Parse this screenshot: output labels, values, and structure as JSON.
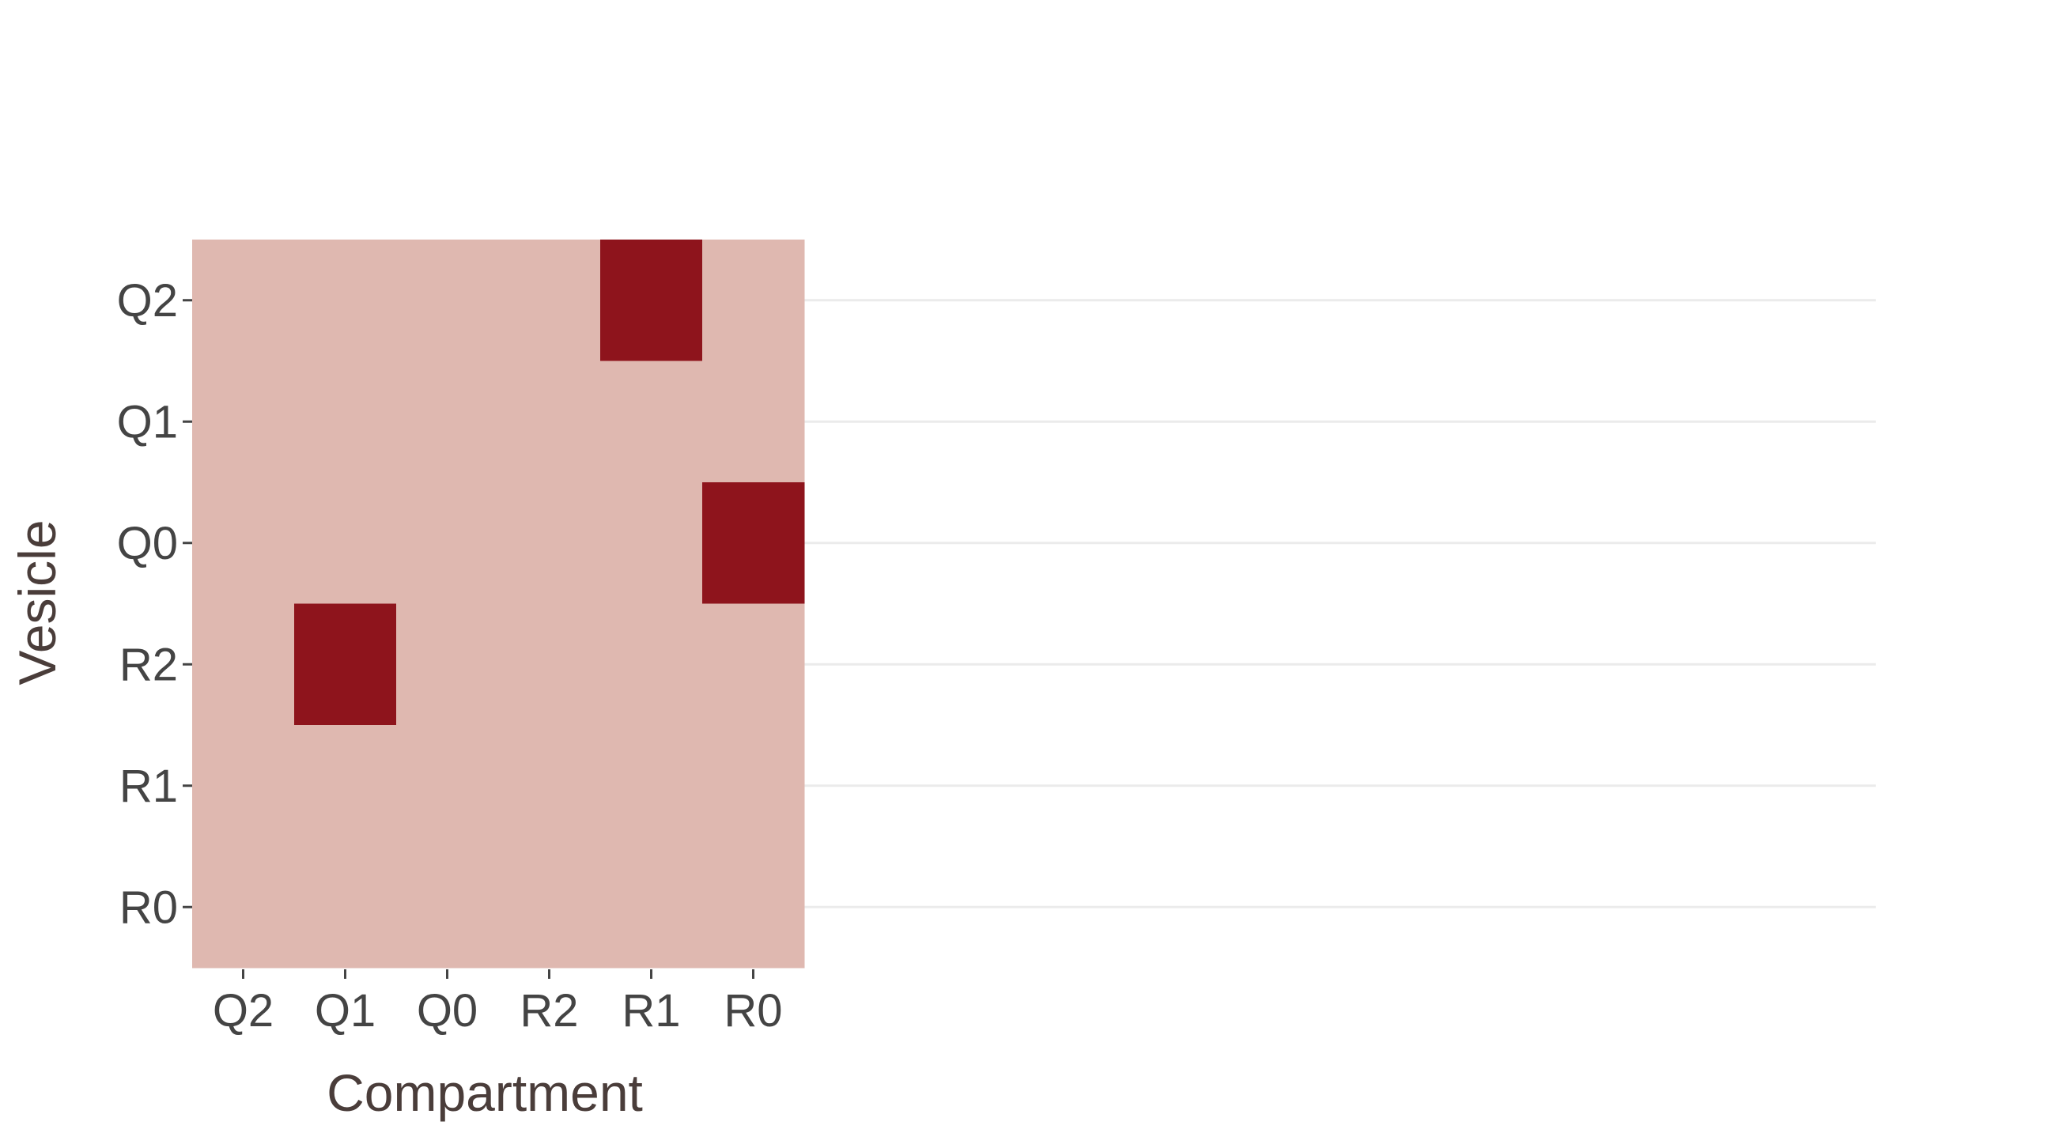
{
  "chart_data": {
    "type": "heatmap",
    "title": "",
    "xlabel": "Compartment",
    "ylabel": "Vesicle",
    "x_categories": [
      "Q2",
      "Q1",
      "Q0",
      "R2",
      "R1",
      "R0"
    ],
    "y_categories": [
      "Q2",
      "Q1",
      "Q0",
      "R2",
      "R1",
      "R0"
    ],
    "z": [
      [
        0,
        0,
        0,
        0,
        1,
        0
      ],
      [
        0,
        0,
        0,
        0,
        0,
        0
      ],
      [
        0,
        0,
        0,
        0,
        0,
        1
      ],
      [
        0,
        1,
        0,
        0,
        0,
        0
      ],
      [
        0,
        0,
        0,
        0,
        0,
        0
      ],
      [
        0,
        0,
        0,
        0,
        0,
        0
      ]
    ],
    "colors": {
      "low": "#dfb8b0",
      "high": "#8e141c"
    },
    "grid": true,
    "gridline_color": "#ebebeb"
  }
}
